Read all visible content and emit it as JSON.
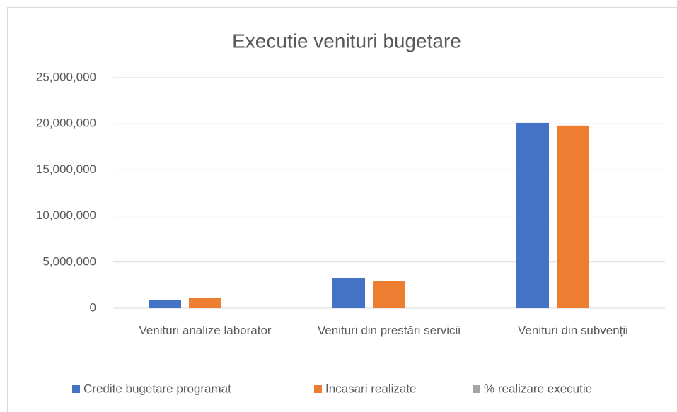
{
  "chart_data": {
    "type": "bar",
    "title": "Executie venituri bugetare",
    "categories": [
      "Venituri analize laborator",
      "Venituri din prestări servicii",
      "Venituri din subvenții"
    ],
    "series": [
      {
        "name": "Credite bugetare programat",
        "color": "#4472c4",
        "values": [
          900000,
          3300000,
          20100000
        ]
      },
      {
        "name": "Incasari realizate",
        "color": "#ed7d31",
        "values": [
          1100000,
          2950000,
          19800000
        ]
      },
      {
        "name": "% realizare  executie",
        "color": "#a5a5a5",
        "values": [
          122,
          89,
          99
        ]
      }
    ],
    "ylim": [
      0,
      25000000
    ],
    "yticks": [
      0,
      {
        "value": 5000000,
        "label": "5,000,000"
      },
      {
        "value": 10000000,
        "label": "10,000,000"
      },
      {
        "value": 15000000,
        "label": "15,000,000"
      },
      {
        "value": 20000000,
        "label": "20,000,000"
      },
      {
        "value": 25000000,
        "label": "25,000,000"
      }
    ],
    "grid": true,
    "legend": "bottom"
  }
}
